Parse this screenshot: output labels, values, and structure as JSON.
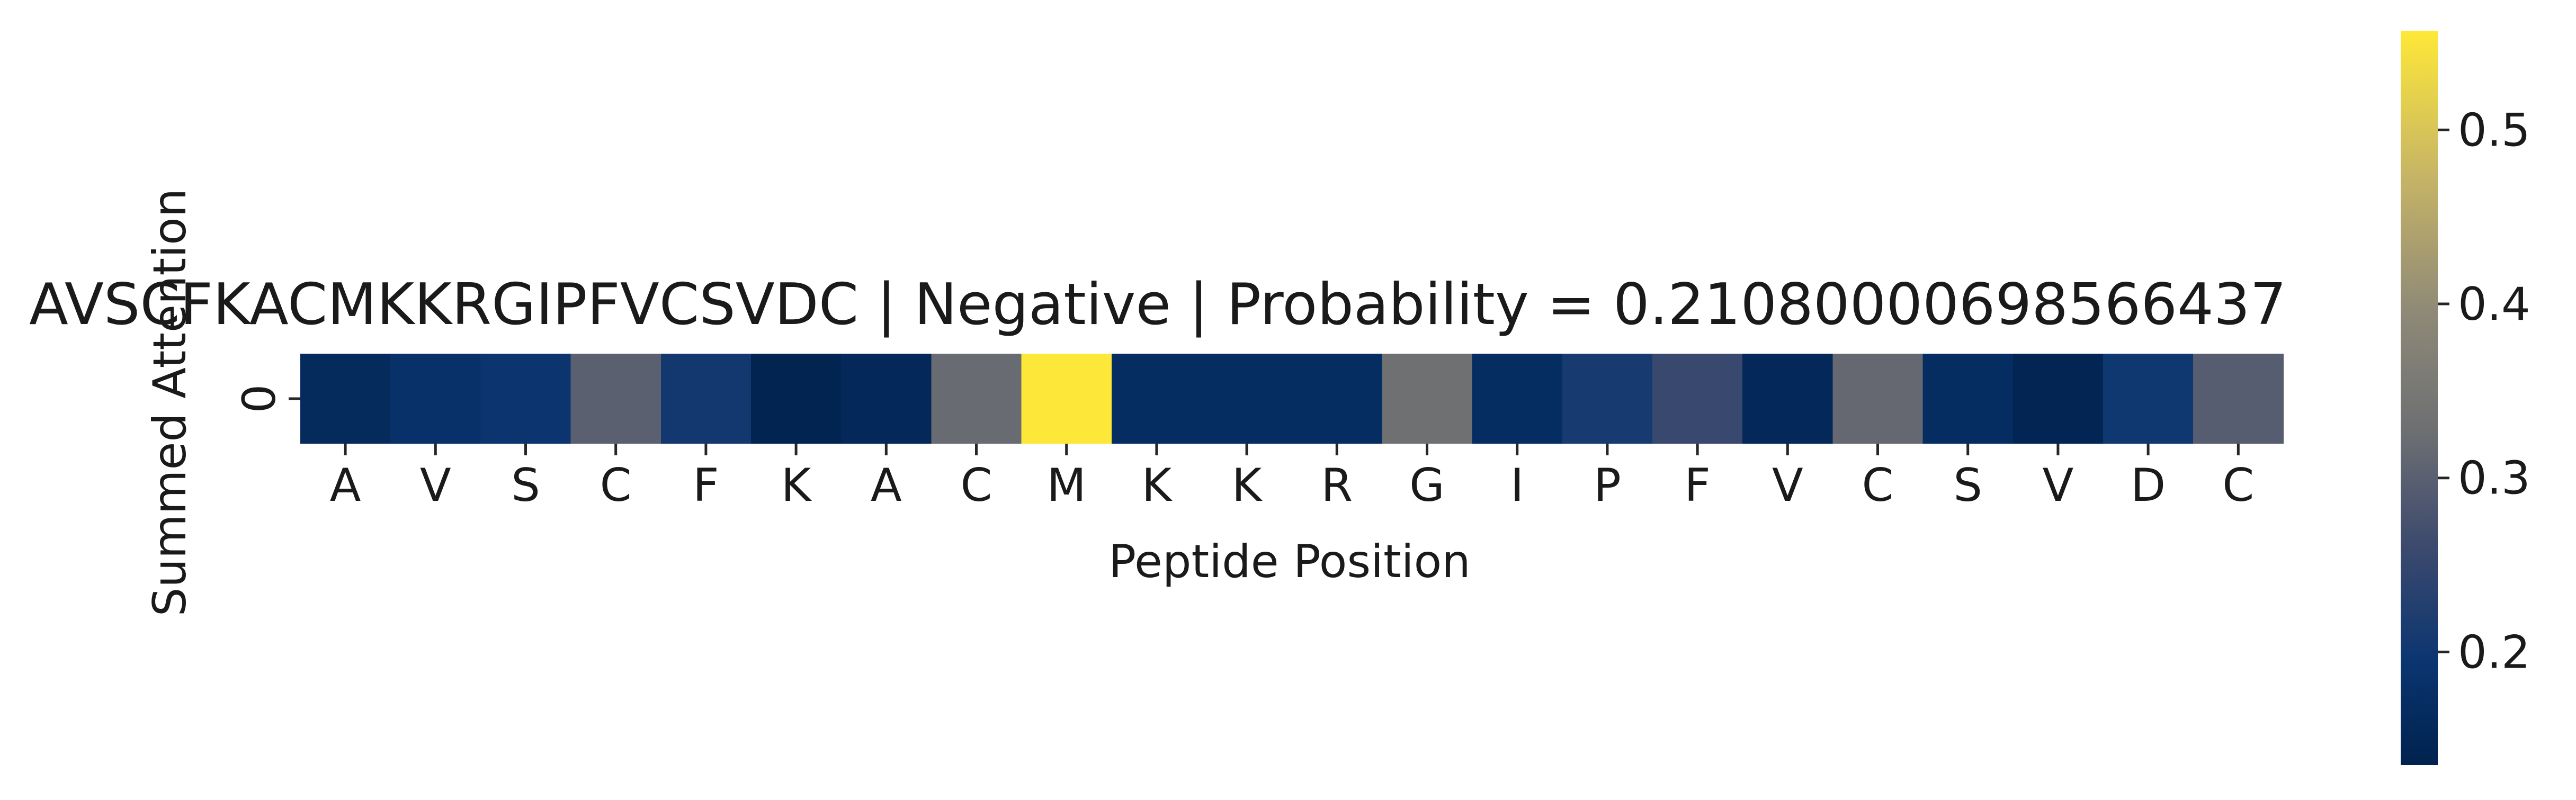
{
  "chart_data": {
    "type": "heatmap",
    "title": "AVSCFKACMKKRGIPFVCSVDC | Negative | Probability = 0.21080000698566437",
    "xlabel": "Peptide Position",
    "ylabel": "Summed Attention",
    "x_tick_labels": [
      "A",
      "V",
      "S",
      "C",
      "F",
      "K",
      "A",
      "C",
      "M",
      "K",
      "K",
      "R",
      "G",
      "I",
      "P",
      "F",
      "V",
      "C",
      "S",
      "V",
      "D",
      "C"
    ],
    "y_tick_labels": [
      "0"
    ],
    "values": [
      [
        0.16,
        0.182,
        0.195,
        0.3,
        0.205,
        0.14,
        0.155,
        0.32,
        0.555,
        0.168,
        0.168,
        0.168,
        0.33,
        0.168,
        0.21,
        0.255,
        0.155,
        0.315,
        0.168,
        0.145,
        0.2,
        0.295
      ]
    ],
    "colormap": "cividis",
    "colorbar": {
      "min": 0.135,
      "max": 0.557,
      "ticks": [
        0.2,
        0.3,
        0.4,
        0.5
      ],
      "tick_labels": [
        "0.2",
        "0.3",
        "0.4",
        "0.5"
      ]
    },
    "grid": false
  }
}
